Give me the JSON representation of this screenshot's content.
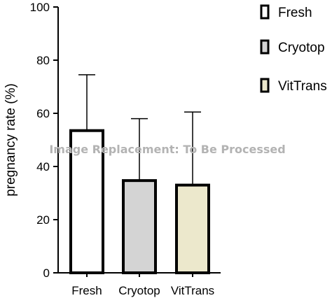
{
  "chart_data": {
    "type": "bar",
    "title": "",
    "xlabel": "",
    "ylabel": "pregnancy rate (%)",
    "ylim": [
      0,
      100
    ],
    "yticks": [
      0,
      20,
      40,
      60,
      80,
      100
    ],
    "grid": false,
    "categories": [
      "Fresh",
      "Cryotop",
      "VitTrans"
    ],
    "values": [
      53.5,
      34.7,
      33.0
    ],
    "error_upper": [
      74.5,
      58.0,
      60.5
    ],
    "bar_colors": [
      "#ffffff",
      "#d4d4d4",
      "#ece8cc"
    ],
    "legend": {
      "placement": "top-right",
      "entries": [
        "Fresh",
        "Cryotop",
        "VitTrans"
      ]
    }
  },
  "watermark": "Image Replacement: To Be Processed"
}
